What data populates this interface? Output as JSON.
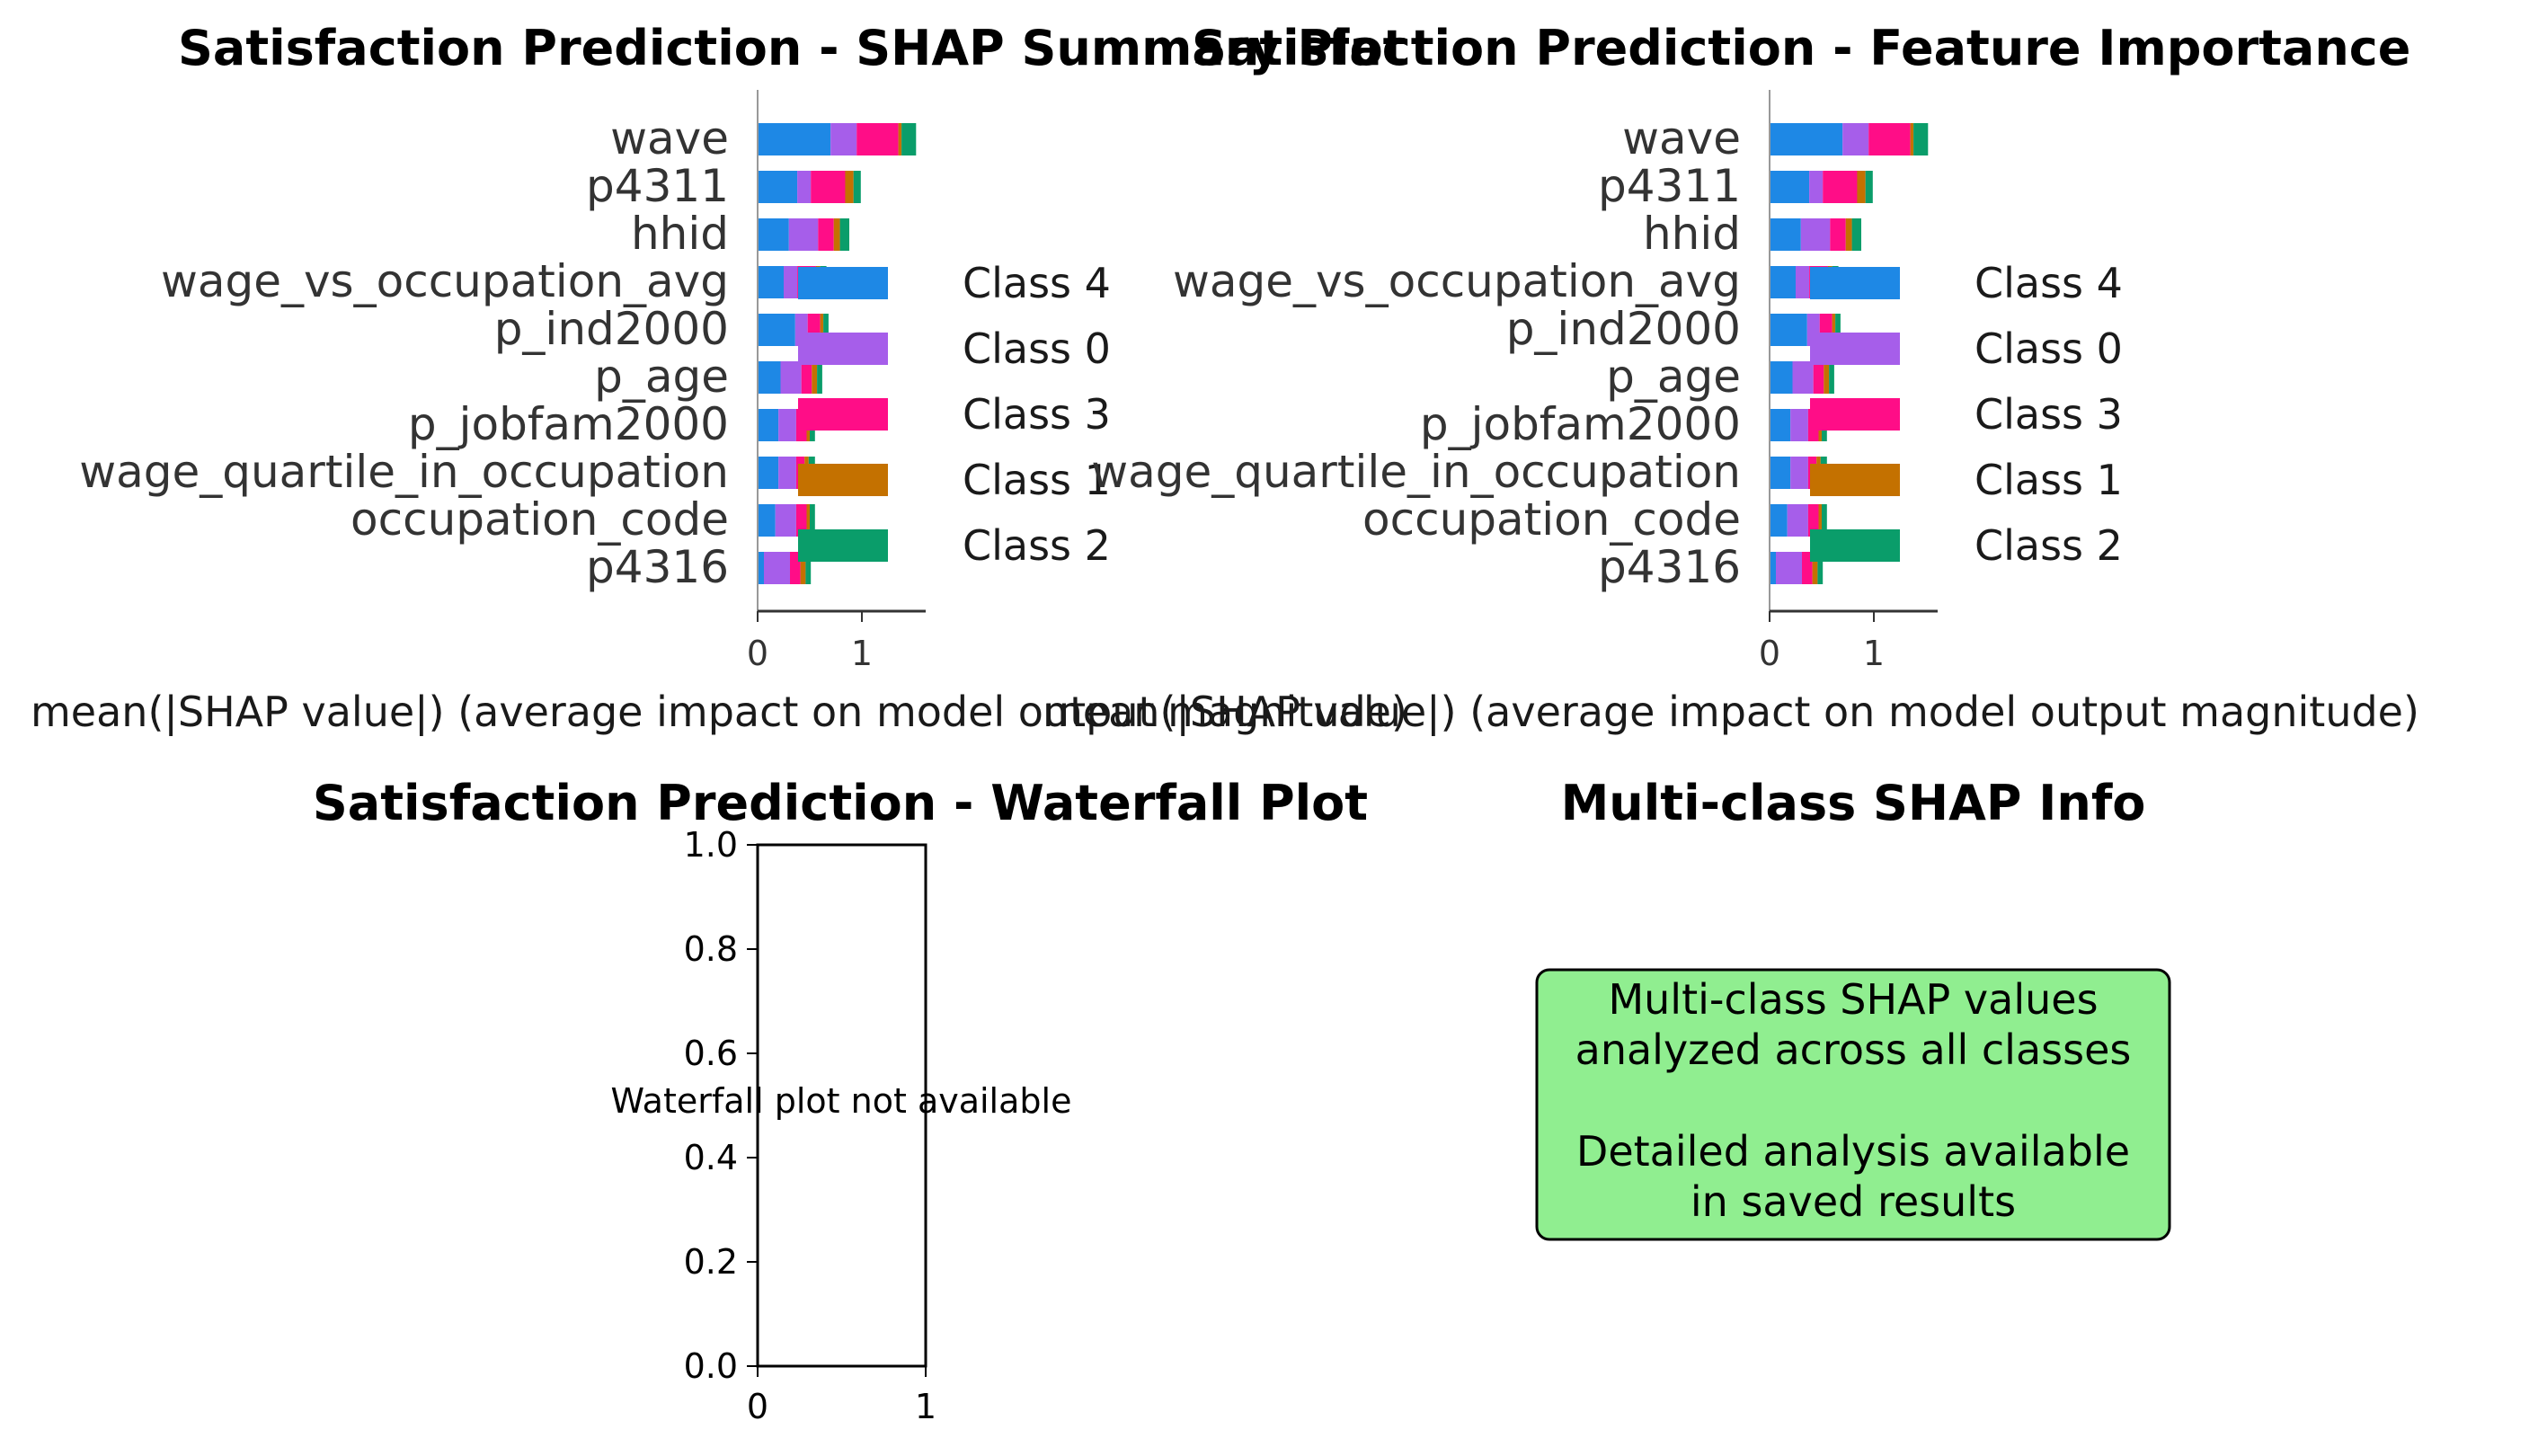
{
  "figure": {
    "colors": {
      "class_4": "#1E88E5",
      "class_0": "#A65EEA",
      "class_3": "#FF0D87",
      "class_1": "#C47100",
      "class_2": "#0A9D6A",
      "text_dark": "#333333",
      "info_box_fill": "#90EE90"
    }
  },
  "chart_data": [
    {
      "type": "bar",
      "orientation": "horizontal",
      "stacked": true,
      "title": "Satisfaction Prediction - SHAP Summary Plot",
      "xlabel": "mean(|SHAP value|) (average impact on model output magnitude)",
      "ylabel": "",
      "xticks": [
        "0",
        "1"
      ],
      "xlim": [
        0,
        1.6
      ],
      "categories": [
        "wave",
        "p4311",
        "hhid",
        "wage_vs_occupation_avg",
        "p_ind2000",
        "p_age",
        "p_jobfam2000",
        "wage_quartile_in_occupation",
        "occupation_code",
        "p4316"
      ],
      "series": [
        {
          "name": "Class 4",
          "color": "#1E88E5",
          "values": [
            0.7,
            0.38,
            0.3,
            0.25,
            0.36,
            0.22,
            0.2,
            0.2,
            0.17,
            0.06
          ]
        },
        {
          "name": "Class 0",
          "color": "#A65EEA",
          "values": [
            0.25,
            0.13,
            0.28,
            0.13,
            0.12,
            0.2,
            0.17,
            0.17,
            0.2,
            0.25
          ]
        },
        {
          "name": "Class 3",
          "color": "#FF0D87",
          "values": [
            0.4,
            0.33,
            0.15,
            0.18,
            0.12,
            0.1,
            0.1,
            0.08,
            0.1,
            0.1
          ]
        },
        {
          "name": "Class 1",
          "color": "#C47100",
          "values": [
            0.03,
            0.08,
            0.06,
            0.04,
            0.03,
            0.05,
            0.03,
            0.04,
            0.03,
            0.05
          ]
        },
        {
          "name": "Class 2",
          "color": "#0A9D6A",
          "values": [
            0.14,
            0.07,
            0.09,
            0.06,
            0.05,
            0.05,
            0.05,
            0.06,
            0.05,
            0.05
          ]
        }
      ],
      "legend": {
        "placement": "right",
        "entries": [
          "Class 4",
          "Class 0",
          "Class 3",
          "Class 1",
          "Class 2"
        ]
      }
    },
    {
      "type": "bar",
      "orientation": "horizontal",
      "stacked": true,
      "title": "Satisfaction Prediction - Feature Importance",
      "xlabel": "mean(|SHAP value|) (average impact on model output magnitude)",
      "ylabel": "",
      "xticks": [
        "0",
        "1"
      ],
      "xlim": [
        0,
        1.6
      ],
      "categories": [
        "wave",
        "p4311",
        "hhid",
        "wage_vs_occupation_avg",
        "p_ind2000",
        "p_age",
        "p_jobfam2000",
        "wage_quartile_in_occupation",
        "occupation_code",
        "p4316"
      ],
      "series": [
        {
          "name": "Class 4",
          "color": "#1E88E5",
          "values": [
            0.7,
            0.38,
            0.3,
            0.25,
            0.36,
            0.22,
            0.2,
            0.2,
            0.17,
            0.06
          ]
        },
        {
          "name": "Class 0",
          "color": "#A65EEA",
          "values": [
            0.25,
            0.13,
            0.28,
            0.13,
            0.12,
            0.2,
            0.17,
            0.17,
            0.2,
            0.25
          ]
        },
        {
          "name": "Class 3",
          "color": "#FF0D87",
          "values": [
            0.4,
            0.33,
            0.15,
            0.18,
            0.12,
            0.1,
            0.1,
            0.08,
            0.1,
            0.1
          ]
        },
        {
          "name": "Class 1",
          "color": "#C47100",
          "values": [
            0.03,
            0.08,
            0.06,
            0.04,
            0.03,
            0.05,
            0.03,
            0.04,
            0.03,
            0.05
          ]
        },
        {
          "name": "Class 2",
          "color": "#0A9D6A",
          "values": [
            0.14,
            0.07,
            0.09,
            0.06,
            0.05,
            0.05,
            0.05,
            0.06,
            0.05,
            0.05
          ]
        }
      ],
      "legend": {
        "placement": "right",
        "entries": [
          "Class 4",
          "Class 0",
          "Class 3",
          "Class 1",
          "Class 2"
        ]
      }
    },
    {
      "type": "table",
      "title": "Satisfaction Prediction - Waterfall Plot",
      "xlim": [
        0,
        1
      ],
      "ylim": [
        0,
        1
      ],
      "xticks": [
        "0",
        "1"
      ],
      "yticks": [
        "0.0",
        "0.2",
        "0.4",
        "0.6",
        "0.8",
        "1.0"
      ],
      "message": "Waterfall plot not available"
    },
    {
      "type": "table",
      "title": "Multi-class SHAP Info",
      "box_lines": [
        "Multi-class SHAP values",
        "analyzed across all classes",
        "",
        "Detailed analysis available",
        "in saved results"
      ]
    }
  ]
}
